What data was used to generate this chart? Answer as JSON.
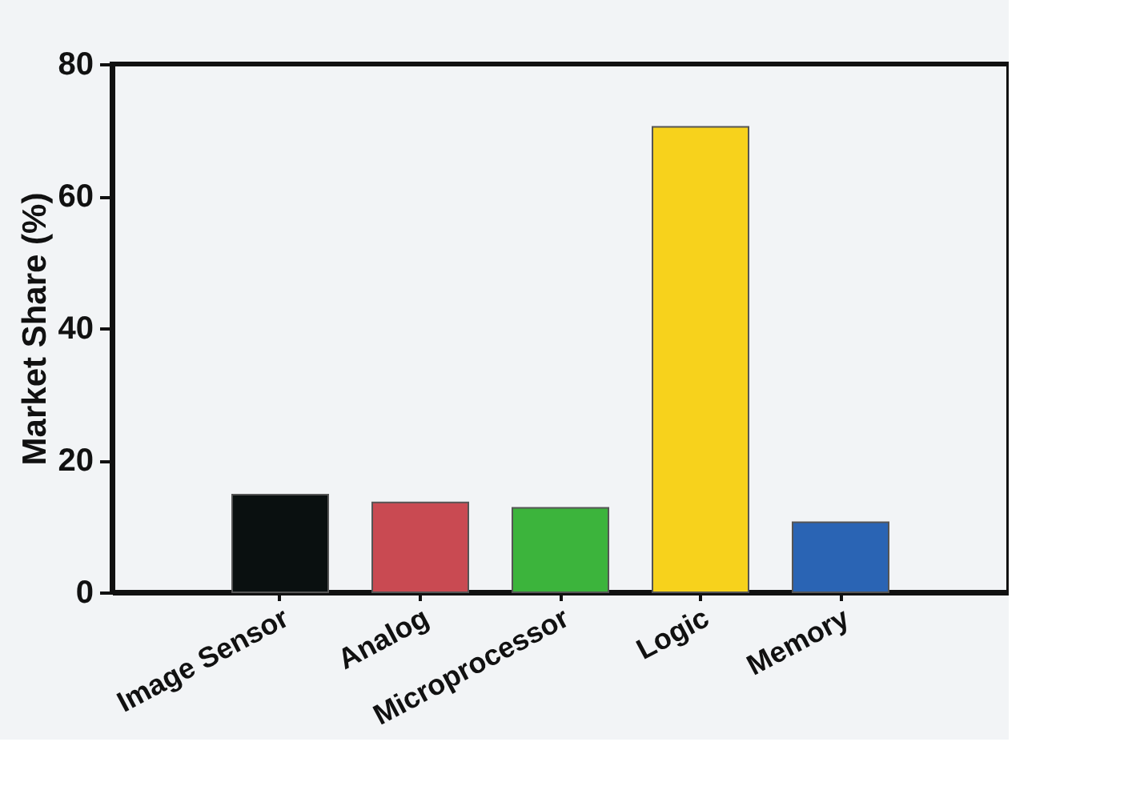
{
  "chart_data": {
    "type": "bar",
    "ylabel": "Market Share (%)",
    "categories": [
      "Image Sensor",
      "Analog",
      "Microprocessor",
      "Logic",
      "Memory"
    ],
    "values": [
      14.8,
      13.6,
      12.8,
      70.5,
      10.6
    ],
    "colors": [
      "#0a1010",
      "#c94a52",
      "#3cb43c",
      "#f7d21c",
      "#2a64b4"
    ],
    "ylim": [
      0,
      80
    ],
    "yticks": [
      0,
      20,
      40,
      60,
      80
    ],
    "grid": false
  }
}
